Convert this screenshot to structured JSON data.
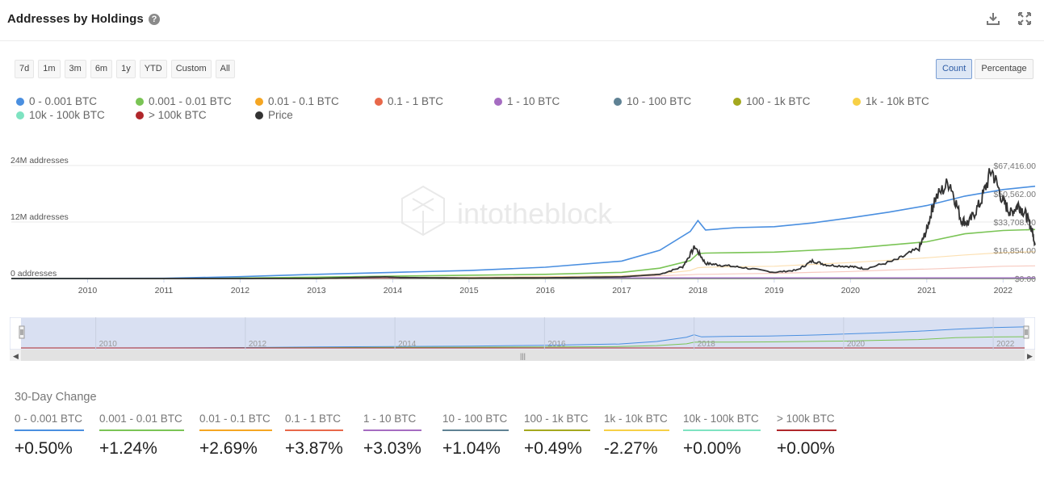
{
  "header": {
    "title": "Addresses by Holdings",
    "help": "?",
    "download_icon": "download-icon",
    "expand_icon": "expand-icon"
  },
  "ranges": [
    "7d",
    "1m",
    "3m",
    "6m",
    "1y",
    "YTD",
    "Custom",
    "All"
  ],
  "modes": {
    "count": "Count",
    "percentage": "Percentage",
    "active": "count"
  },
  "legend": [
    {
      "label": "0 - 0.001 BTC",
      "color": "#4a8fe0"
    },
    {
      "label": "0.001 - 0.01 BTC",
      "color": "#7ac455"
    },
    {
      "label": "0.01 - 0.1 BTC",
      "color": "#f5a623"
    },
    {
      "label": "0.1 - 1 BTC",
      "color": "#e8684a"
    },
    {
      "label": "1 - 10 BTC",
      "color": "#a56cc1"
    },
    {
      "label": "10 - 100 BTC",
      "color": "#5f8294"
    },
    {
      "label": "100 - 1k BTC",
      "color": "#a4a81e"
    },
    {
      "label": "1k - 10k BTC",
      "color": "#f7d046"
    },
    {
      "label": "10k - 100k BTC",
      "color": "#7ee3c1"
    },
    {
      "label": "> 100k BTC",
      "color": "#b0272b"
    },
    {
      "label": "Price",
      "color": "#333333"
    }
  ],
  "watermark": "intotheblock",
  "chart_data": {
    "type": "line",
    "title": "Addresses by Holdings",
    "x": [
      2009.0,
      2010.0,
      2011.0,
      2012.0,
      2013.0,
      2014.0,
      2015.0,
      2016.0,
      2017.0,
      2017.5,
      2017.9,
      2018.0,
      2018.1,
      2018.5,
      2019.0,
      2019.5,
      2020.0,
      2020.5,
      2021.0,
      2021.5,
      2022.0,
      2022.42
    ],
    "xticks": [
      "2010",
      "2011",
      "2012",
      "2013",
      "2014",
      "2015",
      "2016",
      "2017",
      "2018",
      "2019",
      "2020",
      "2021",
      "2022"
    ],
    "xtick_values": [
      2010,
      2011,
      2012,
      2013,
      2014,
      2015,
      2016,
      2017,
      2018,
      2019,
      2020,
      2021,
      2022
    ],
    "xlim": [
      2009.0,
      2022.42
    ],
    "left_axis": {
      "label_unit": "addresses",
      "ticks": [
        "0 addresses",
        "12M addresses",
        "24M addresses"
      ],
      "tick_values": [
        0,
        12,
        24
      ],
      "ylim_millions": [
        0,
        24
      ]
    },
    "right_axis": {
      "ticks": [
        "$0.00",
        "$16,854.00",
        "$33,708.00",
        "$50,562.00",
        "$67,416.00"
      ],
      "tick_values": [
        0,
        16854,
        33708,
        50562,
        67416
      ]
    },
    "series": [
      {
        "name": "0 - 0.001 BTC",
        "unit": "millions",
        "values": [
          0.0,
          0.02,
          0.05,
          0.4,
          0.9,
          1.3,
          1.7,
          2.4,
          3.7,
          6.0,
          10.0,
          12.3,
          10.3,
          10.8,
          11.0,
          11.8,
          12.9,
          14.1,
          15.5,
          17.5,
          18.9,
          19.6
        ]
      },
      {
        "name": "0.001 - 0.01 BTC",
        "unit": "millions",
        "values": [
          0.0,
          0.0,
          0.02,
          0.1,
          0.3,
          0.5,
          0.7,
          0.9,
          1.3,
          2.2,
          3.8,
          5.3,
          5.4,
          5.5,
          5.6,
          6.0,
          6.4,
          7.1,
          7.8,
          9.5,
          10.2,
          10.4
        ]
      },
      {
        "name": "0.01 - 0.1 BTC",
        "unit": "millions",
        "values": [
          0.0,
          0.0,
          0.01,
          0.05,
          0.1,
          0.2,
          0.3,
          0.4,
          0.6,
          1.0,
          1.7,
          2.3,
          2.4,
          2.5,
          2.6,
          3.0,
          3.4,
          3.9,
          4.4,
          5.0,
          5.5,
          5.7
        ]
      },
      {
        "name": "0.1 - 1 BTC",
        "unit": "millions",
        "values": [
          0.0,
          0.0,
          0.0,
          0.02,
          0.05,
          0.1,
          0.2,
          0.3,
          0.4,
          0.6,
          0.8,
          0.9,
          0.9,
          1.0,
          1.1,
          1.3,
          1.5,
          1.8,
          2.0,
          2.3,
          2.6,
          2.7
        ]
      },
      {
        "name": "1 - 10 BTC",
        "unit": "millions",
        "values": [
          0.0,
          0.0,
          0.0,
          0.01,
          0.03,
          0.08,
          0.1,
          0.13,
          0.14,
          0.15,
          0.15,
          0.15,
          0.15,
          0.15,
          0.15,
          0.16,
          0.16,
          0.16,
          0.16,
          0.16,
          0.16,
          0.16
        ]
      },
      {
        "name": "10 - 100 BTC",
        "unit": "millions",
        "values": [
          0.0,
          0.0,
          0.0,
          0.005,
          0.01,
          0.015,
          0.015,
          0.015,
          0.016,
          0.016,
          0.016,
          0.016,
          0.016,
          0.016,
          0.016,
          0.016,
          0.016,
          0.016,
          0.016,
          0.015,
          0.014,
          0.014
        ]
      },
      {
        "name": "100 - 1k BTC",
        "unit": "millions",
        "values": [
          0,
          0,
          0,
          0.001,
          0.002,
          0.002,
          0.002,
          0.002,
          0.002,
          0.002,
          0.002,
          0.002,
          0.002,
          0.002,
          0.002,
          0.002,
          0.002,
          0.002,
          0.002,
          0.002,
          0.002,
          0.002
        ]
      },
      {
        "name": "1k - 10k BTC",
        "unit": "millions",
        "values": [
          0,
          0,
          0,
          0,
          0,
          0,
          0,
          0,
          0,
          0,
          0,
          0,
          0,
          0,
          0,
          0,
          0,
          0,
          0,
          0,
          0,
          0
        ]
      },
      {
        "name": "10k - 100k BTC",
        "unit": "millions",
        "values": [
          0,
          0,
          0,
          0,
          0,
          0,
          0,
          0,
          0,
          0,
          0,
          0,
          0,
          0,
          0,
          0,
          0,
          0,
          0,
          0,
          0,
          0
        ]
      },
      {
        "name": "> 100k BTC",
        "unit": "millions",
        "values": [
          0,
          0,
          0,
          0,
          0,
          0,
          0,
          0,
          0,
          0,
          0,
          0,
          0,
          0,
          0,
          0,
          0,
          0,
          0,
          0,
          0,
          0
        ]
      }
    ],
    "price": {
      "name": "Price",
      "unit": "USD",
      "x": [
        2009.0,
        2010.5,
        2011.0,
        2012.0,
        2013.0,
        2013.9,
        2014.1,
        2015.0,
        2016.0,
        2017.0,
        2017.5,
        2017.8,
        2017.96,
        2018.1,
        2018.3,
        2018.6,
        2019.0,
        2019.3,
        2019.5,
        2019.7,
        2020.0,
        2020.2,
        2020.6,
        2020.9,
        2021.0,
        2021.1,
        2021.3,
        2021.45,
        2021.55,
        2021.7,
        2021.85,
        2022.0,
        2022.1,
        2022.2,
        2022.3,
        2022.38,
        2022.42
      ],
      "values": [
        0,
        0,
        1,
        10,
        100,
        1000,
        600,
        250,
        430,
        1000,
        2500,
        7000,
        19000,
        9000,
        8000,
        6500,
        3700,
        5000,
        10500,
        8000,
        7200,
        5800,
        11000,
        18000,
        29000,
        47000,
        58000,
        35000,
        33000,
        45000,
        65000,
        46000,
        39000,
        44000,
        38000,
        29000,
        20000
      ]
    }
  },
  "navigator": {
    "years": [
      "2010",
      "2012",
      "2014",
      "2016",
      "2018",
      "2020",
      "2022"
    ]
  },
  "change": {
    "title": "30-Day Change",
    "items": [
      {
        "label": "0 - 0.001 BTC",
        "value": "+0.50%",
        "color": "#4a8fe0"
      },
      {
        "label": "0.001 - 0.01 BTC",
        "value": "+1.24%",
        "color": "#7ac455"
      },
      {
        "label": "0.01 - 0.1 BTC",
        "value": "+2.69%",
        "color": "#f5a623"
      },
      {
        "label": "0.1 - 1 BTC",
        "value": "+3.87%",
        "color": "#e8684a"
      },
      {
        "label": "1 - 10 BTC",
        "value": "+3.03%",
        "color": "#a56cc1"
      },
      {
        "label": "10 - 100 BTC",
        "value": "+1.04%",
        "color": "#5f8294"
      },
      {
        "label": "100 - 1k BTC",
        "value": "+0.49%",
        "color": "#a4a81e"
      },
      {
        "label": "1k - 10k BTC",
        "value": "-2.27%",
        "color": "#f7d046"
      },
      {
        "label": "10k - 100k BTC",
        "value": "+0.00%",
        "color": "#7ee3c1"
      },
      {
        "label": "> 100k BTC",
        "value": "+0.00%",
        "color": "#b0272b"
      }
    ]
  }
}
